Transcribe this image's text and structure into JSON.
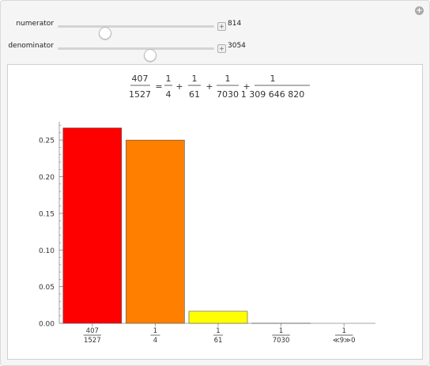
{
  "controls": {
    "numerator": {
      "label": "numerator",
      "value": "814",
      "fraction": 0.28
    },
    "denominator": {
      "label": "denominator",
      "value": "3054",
      "fraction": 0.59
    }
  },
  "equation": {
    "lhs": {
      "num": "407",
      "den": "1527"
    },
    "equals": "=",
    "plus": "+",
    "terms": [
      {
        "num": "1",
        "den": "4"
      },
      {
        "num": "1",
        "den": "61"
      },
      {
        "num": "1",
        "den": "7030"
      },
      {
        "num": "1",
        "den": "1 309 646 820"
      }
    ]
  },
  "chart_data": {
    "type": "bar",
    "categories": [
      {
        "num": "407",
        "den": "1527"
      },
      {
        "num": "1",
        "den": "4"
      },
      {
        "num": "1",
        "den": "61"
      },
      {
        "num": "1",
        "den": "7030"
      },
      {
        "num": "1",
        "den": "≪9≫0"
      }
    ],
    "values": [
      0.26654,
      0.25,
      0.016393,
      0.000142,
      8e-10
    ],
    "colors": [
      "#ff0000",
      "#ff7f00",
      "#ffff00",
      "#7fff00",
      "#00ff00"
    ],
    "yticks": [
      "0.00",
      "0.05",
      "0.10",
      "0.15",
      "0.20",
      "0.25"
    ],
    "ylim": [
      0,
      0.275
    ],
    "title": "",
    "xlabel": "",
    "ylabel": ""
  },
  "icons": {
    "corner": "plus-circle-icon",
    "slider_step": "plus-square-icon"
  }
}
